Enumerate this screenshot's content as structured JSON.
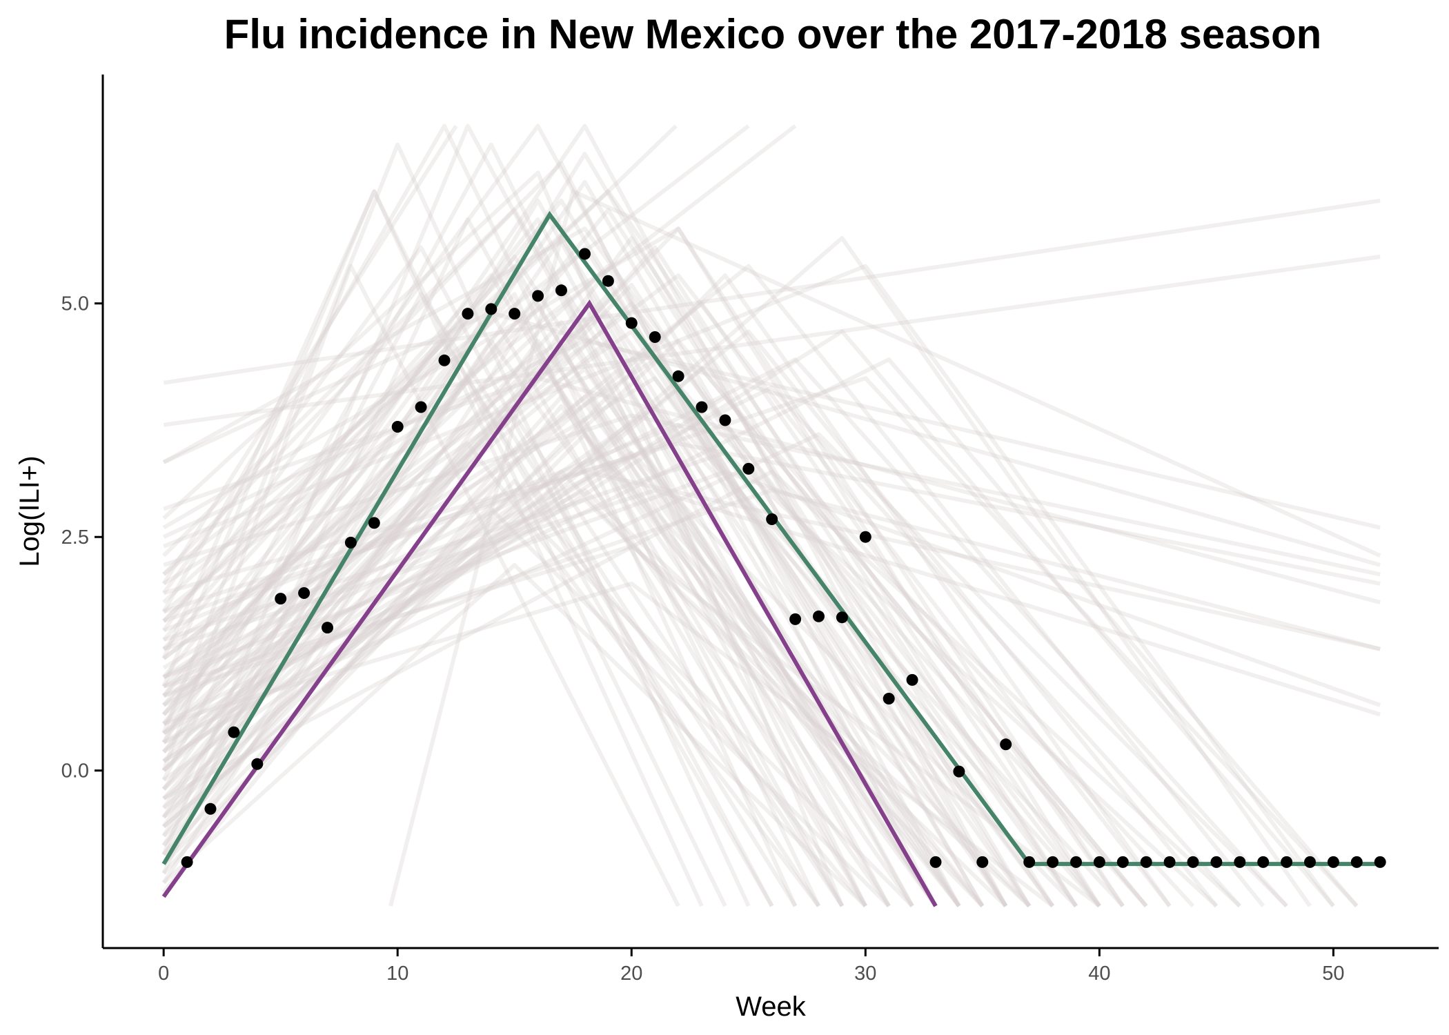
{
  "chart_data": {
    "type": "line",
    "title": "Flu incidence in New Mexico over the 2017-2018 season",
    "xlabel": "Week",
    "ylabel": "Log(ILI+)",
    "xlim": [
      -2.6,
      54.5
    ],
    "ylim": [
      -1.9,
      7.45
    ],
    "xticks": [
      0,
      10,
      20,
      30,
      40,
      50
    ],
    "xtick_labels": [
      "0",
      "10",
      "20",
      "30",
      "40",
      "50"
    ],
    "yticks": [
      0,
      2.5,
      5
    ],
    "ytick_labels": [
      "0.0",
      "2.5",
      "5.0"
    ],
    "grid": false,
    "colors": {
      "green_fit": "#458469",
      "purple_fit": "#84408A",
      "samples": "#D9D0D1",
      "points": "#000000"
    },
    "fit_lines": [
      {
        "x": [
          0,
          16.5,
          37,
          52
        ],
        "y": [
          -1.0,
          5.95,
          -1.0,
          -1.0
        ]
      },
      {
        "x": [
          0,
          18.2,
          33
        ],
        "y": [
          -1.35,
          5.0,
          -1.45
        ]
      }
    ],
    "sample_lines": [
      [
        [
          0,
          1.0
        ],
        [
          17,
          6.1
        ],
        [
          35,
          -1.45
        ]
      ],
      [
        [
          0,
          0.5
        ],
        [
          15,
          5.5
        ],
        [
          33,
          -1.45
        ]
      ],
      [
        [
          0,
          -0.2
        ],
        [
          18,
          6.3
        ],
        [
          36,
          -1.45
        ]
      ],
      [
        [
          0,
          0.8
        ],
        [
          16,
          5.9
        ],
        [
          32,
          -1.45
        ]
      ],
      [
        [
          0,
          0.2
        ],
        [
          19,
          6.0
        ],
        [
          38,
          -1.45
        ]
      ],
      [
        [
          0,
          1.4
        ],
        [
          14,
          5.3
        ],
        [
          30,
          -1.45
        ]
      ],
      [
        [
          0,
          -0.6
        ],
        [
          17,
          5.7
        ],
        [
          34,
          -1.45
        ]
      ],
      [
        [
          0,
          2.7
        ],
        [
          16,
          6.4
        ],
        [
          29,
          -1.45
        ]
      ],
      [
        [
          0,
          0.0
        ],
        [
          20,
          5.2
        ],
        [
          37,
          -1.45
        ]
      ],
      [
        [
          0,
          1.7
        ],
        [
          12,
          6.9
        ],
        [
          28,
          -1.45
        ]
      ],
      [
        [
          0,
          0.4
        ],
        [
          10,
          6.7
        ],
        [
          25,
          -1.45
        ]
      ],
      [
        [
          0,
          -0.9
        ],
        [
          13,
          6.9
        ],
        [
          31,
          -1.45
        ]
      ],
      [
        [
          0,
          0.3
        ],
        [
          18,
          6.9
        ],
        [
          36,
          -1.45
        ]
      ],
      [
        [
          0,
          1.2
        ],
        [
          9,
          6.2
        ],
        [
          24,
          -1.45
        ]
      ],
      [
        [
          0,
          0.7
        ],
        [
          15,
          5.1
        ],
        [
          27,
          -1.45
        ]
      ],
      [
        [
          0,
          -0.3
        ],
        [
          21,
          5.6
        ],
        [
          39,
          -1.45
        ]
      ],
      [
        [
          0,
          2.3
        ],
        [
          17,
          6.5
        ],
        [
          33,
          -1.45
        ]
      ],
      [
        [
          0,
          0.9
        ],
        [
          19,
          5.4
        ],
        [
          35,
          -1.45
        ]
      ],
      [
        [
          0,
          -1.2
        ],
        [
          16,
          5.0
        ],
        [
          30,
          -1.45
        ]
      ],
      [
        [
          0,
          0.1
        ],
        [
          22,
          5.8
        ],
        [
          40,
          -1.45
        ]
      ],
      [
        [
          0,
          1.9
        ],
        [
          11,
          5.6
        ],
        [
          26,
          -1.45
        ]
      ],
      [
        [
          0,
          -0.4
        ],
        [
          14,
          4.6
        ],
        [
          31,
          -1.45
        ]
      ],
      [
        [
          0,
          0.6
        ],
        [
          18,
          4.3
        ],
        [
          34,
          -1.45
        ]
      ],
      [
        [
          0,
          1.3
        ],
        [
          20,
          4.7
        ],
        [
          36,
          -1.45
        ]
      ],
      [
        [
          0,
          -0.8
        ],
        [
          17,
          4.0
        ],
        [
          32,
          -1.45
        ]
      ],
      [
        [
          0,
          0.0
        ],
        [
          15,
          3.8
        ],
        [
          29,
          -1.45
        ]
      ],
      [
        [
          0,
          2.0
        ],
        [
          19,
          4.9
        ],
        [
          37,
          -1.45
        ]
      ],
      [
        [
          0,
          -1.0
        ],
        [
          18,
          3.6
        ],
        [
          35,
          -1.45
        ]
      ],
      [
        [
          0,
          0.5
        ],
        [
          16,
          4.4
        ],
        [
          33,
          -1.45
        ]
      ],
      [
        [
          0,
          1.1
        ],
        [
          21,
          4.2
        ],
        [
          38,
          -1.45
        ]
      ],
      [
        [
          0,
          -0.5
        ],
        [
          13,
          3.5
        ],
        [
          28,
          -1.45
        ]
      ],
      [
        [
          0,
          0.3
        ],
        [
          20,
          3.4
        ],
        [
          39,
          -1.45
        ]
      ],
      [
        [
          0,
          -1.3
        ],
        [
          17,
          3.9
        ],
        [
          34,
          -1.45
        ]
      ],
      [
        [
          0,
          0.8
        ],
        [
          18,
          2.9
        ],
        [
          36,
          -1.45
        ]
      ],
      [
        [
          0,
          -0.7
        ],
        [
          15,
          3.1
        ],
        [
          30,
          -1.45
        ]
      ],
      [
        [
          0,
          1.5
        ],
        [
          22,
          3.7
        ],
        [
          41,
          -1.45
        ]
      ],
      [
        [
          0,
          -0.1
        ],
        [
          19,
          3.3
        ],
        [
          37,
          -1.45
        ]
      ],
      [
        [
          0,
          0.4
        ],
        [
          16,
          2.6
        ],
        [
          32,
          -1.45
        ]
      ],
      [
        [
          0,
          -1.1
        ],
        [
          14,
          2.8
        ],
        [
          31,
          -1.45
        ]
      ],
      [
        [
          0,
          0.9
        ],
        [
          20,
          2.4
        ],
        [
          40,
          -1.45
        ]
      ],
      [
        [
          0,
          -0.6
        ],
        [
          23,
          4.3
        ],
        [
          42,
          -1.45
        ]
      ],
      [
        [
          0,
          0.2
        ],
        [
          17,
          4.8
        ],
        [
          33,
          -1.45
        ]
      ],
      [
        [
          0,
          1.6
        ],
        [
          15,
          5.4
        ],
        [
          31,
          -1.45
        ]
      ],
      [
        [
          0,
          -0.2
        ],
        [
          19,
          5.1
        ],
        [
          38,
          -1.45
        ]
      ],
      [
        [
          0,
          0.6
        ],
        [
          18,
          5.6
        ],
        [
          36,
          -1.45
        ]
      ],
      [
        [
          0,
          -0.9
        ],
        [
          16,
          4.6
        ],
        [
          34,
          -1.45
        ]
      ],
      [
        [
          0,
          1.0
        ],
        [
          21,
          4.4
        ],
        [
          42,
          -1.45
        ]
      ],
      [
        [
          0,
          -0.4
        ],
        [
          17,
          3.2
        ],
        [
          35,
          -1.45
        ]
      ],
      [
        [
          0,
          0.1
        ],
        [
          24,
          4.0
        ],
        [
          44,
          -1.45
        ]
      ],
      [
        [
          0,
          0.7
        ],
        [
          18,
          3.0
        ],
        [
          37,
          -1.45
        ]
      ],
      [
        [
          0,
          -1.2
        ],
        [
          15,
          2.2
        ],
        [
          30,
          -1.45
        ]
      ],
      [
        [
          0,
          0.5
        ],
        [
          20,
          2.0
        ],
        [
          38,
          -1.45
        ]
      ],
      [
        [
          0,
          3.3
        ],
        [
          18,
          5.8
        ],
        [
          39,
          -1.45
        ]
      ],
      [
        [
          0,
          1.2
        ],
        [
          22,
          5.3
        ],
        [
          43,
          -1.45
        ]
      ],
      [
        [
          0,
          -0.3
        ],
        [
          25,
          4.7
        ],
        [
          45,
          -1.45
        ]
      ],
      [
        [
          0,
          0.9
        ],
        [
          26,
          4.1
        ],
        [
          46,
          -1.45
        ]
      ],
      [
        [
          0,
          0.3
        ],
        [
          28,
          3.6
        ],
        [
          48,
          -1.45
        ]
      ],
      [
        [
          0,
          -0.7
        ],
        [
          18,
          6.6
        ],
        [
          37,
          -1.45
        ]
      ],
      [
        [
          0,
          2.1
        ],
        [
          15,
          6.0
        ],
        [
          32,
          -1.45
        ]
      ],
      [
        [
          0,
          0.0
        ],
        [
          23,
          5.0
        ],
        [
          41,
          -1.45
        ]
      ],
      [
        [
          0,
          1.4
        ],
        [
          24,
          3.4
        ],
        [
          45,
          -1.45
        ]
      ],
      [
        [
          0,
          -1.0
        ],
        [
          20,
          5.7
        ],
        [
          39,
          -1.45
        ]
      ],
      [
        [
          0,
          0.8
        ],
        [
          17,
          5.2
        ],
        [
          34,
          -1.45
        ]
      ],
      [
        [
          0,
          -0.5
        ],
        [
          16,
          6.1
        ],
        [
          33,
          -1.45
        ]
      ],
      [
        [
          0,
          1.8
        ],
        [
          19,
          6.2
        ],
        [
          40,
          -1.45
        ]
      ],
      [
        [
          0,
          0.2
        ],
        [
          21,
          3.9
        ],
        [
          40,
          -1.45
        ]
      ],
      [
        [
          0,
          -0.8
        ],
        [
          13,
          4.2
        ],
        [
          26,
          -1.45
        ]
      ],
      [
        [
          0,
          0.6
        ],
        [
          14,
          4.9
        ],
        [
          29,
          -1.45
        ]
      ],
      [
        [
          0,
          1.3
        ],
        [
          12,
          4.6
        ],
        [
          27,
          -1.45
        ]
      ],
      [
        [
          0,
          -0.1
        ],
        [
          11,
          5.1
        ],
        [
          28,
          -1.45
        ]
      ],
      [
        [
          0,
          2.6
        ],
        [
          22,
          5.8
        ],
        [
          41,
          -1.45
        ]
      ],
      [
        [
          0,
          0.4
        ],
        [
          25,
          5.4
        ],
        [
          47,
          -1.45
        ]
      ],
      [
        [
          0,
          -0.6
        ],
        [
          29,
          5.7
        ],
        [
          49,
          -1.45
        ]
      ],
      [
        [
          0,
          1.0
        ],
        [
          27,
          4.4
        ],
        [
          48,
          -1.45
        ]
      ],
      [
        [
          0,
          0.1
        ],
        [
          29,
          4.7
        ],
        [
          50,
          -1.45
        ]
      ],
      [
        [
          0,
          2.4
        ],
        [
          30,
          5.4
        ],
        [
          50,
          -1.45
        ]
      ],
      [
        [
          0,
          0.5
        ],
        [
          31,
          4.4
        ],
        [
          51,
          -1.45
        ]
      ],
      [
        [
          0,
          -0.3
        ],
        [
          26,
          3.2
        ],
        [
          46,
          -1.45
        ]
      ],
      [
        [
          0,
          1.7
        ],
        [
          30,
          4.2
        ],
        [
          51,
          -1.45
        ]
      ],
      [
        [
          0,
          0.0
        ],
        [
          8,
          5.4
        ],
        [
          22,
          -1.45
        ]
      ],
      [
        [
          0,
          0.9
        ],
        [
          9,
          6.2
        ],
        [
          23,
          -1.45
        ]
      ],
      [
        [
          0,
          -1.1
        ],
        [
          13,
          5.9
        ],
        [
          29,
          -1.45
        ]
      ],
      [
        [
          0,
          0.3
        ],
        [
          14,
          6.7
        ],
        [
          30,
          -1.45
        ]
      ],
      [
        [
          0,
          1.5
        ],
        [
          16,
          6.9
        ],
        [
          34,
          -1.45
        ]
      ],
      [
        [
          0,
          -0.9
        ],
        [
          24,
          5.3
        ],
        [
          43,
          -1.45
        ]
      ],
      [
        [
          0,
          0.7
        ],
        [
          19,
          4.6
        ],
        [
          36,
          -1.45
        ]
      ],
      [
        [
          0,
          -0.2
        ],
        [
          18,
          4.0
        ],
        [
          35,
          -1.45
        ]
      ],
      [
        [
          0,
          1.2
        ],
        [
          17,
          4.5
        ],
        [
          33,
          -1.45
        ]
      ],
      [
        [
          0,
          0.4
        ],
        [
          20,
          5.0
        ],
        [
          40,
          -1.45
        ]
      ],
      [
        [
          0,
          -0.5
        ],
        [
          22,
          4.6
        ],
        [
          42,
          -1.45
        ]
      ],
      [
        [
          0,
          4.15
        ],
        [
          52,
          6.1
        ]
      ],
      [
        [
          0,
          3.7
        ],
        [
          52,
          5.5
        ]
      ],
      [
        [
          0,
          3.3
        ],
        [
          14,
          4.9
        ],
        [
          52,
          2.2
        ]
      ],
      [
        [
          0,
          2.8
        ],
        [
          16,
          4.2
        ],
        [
          52,
          1.8
        ]
      ],
      [
        [
          0,
          2.5
        ],
        [
          18,
          4.6
        ],
        [
          52,
          2.6
        ]
      ],
      [
        [
          0,
          2.2
        ],
        [
          20,
          3.8
        ],
        [
          52,
          2.1
        ]
      ],
      [
        [
          0,
          1.9
        ],
        [
          22,
          3.5
        ],
        [
          52,
          2.0
        ]
      ],
      [
        [
          0,
          1.6
        ],
        [
          18,
          3.2
        ],
        [
          52,
          1.3
        ]
      ],
      [
        [
          0,
          1.3
        ],
        [
          21,
          3.0
        ],
        [
          52,
          0.6
        ]
      ],
      [
        [
          0,
          1.0
        ],
        [
          24,
          3.2
        ],
        [
          52,
          0.7
        ]
      ],
      [
        [
          9.7,
          -1.45
        ],
        [
          17.5,
          6.2
        ],
        [
          52,
          2.3
        ]
      ],
      [
        [
          0,
          0.8
        ],
        [
          26,
          3.0
        ],
        [
          52,
          1.3
        ]
      ],
      [
        [
          0,
          2.0
        ],
        [
          12.5,
          6.9
        ]
      ],
      [
        [
          0,
          1.6
        ],
        [
          21.9,
          6.9
        ]
      ],
      [
        [
          0,
          2.1
        ],
        [
          25,
          6.9
        ]
      ],
      [
        [
          0,
          1.7
        ],
        [
          27,
          6.9
        ]
      ]
    ],
    "points": {
      "x": [
        1,
        2,
        3,
        4,
        5,
        6,
        7,
        8,
        9,
        10,
        11,
        12,
        13,
        14,
        15,
        16,
        17,
        18,
        19,
        20,
        21,
        22,
        23,
        24,
        25,
        26,
        27,
        28,
        29,
        30,
        31,
        32,
        33,
        34,
        35,
        36,
        37,
        38,
        39,
        40,
        41,
        42,
        43,
        44,
        45,
        46,
        47,
        48,
        49,
        50,
        51,
        52
      ],
      "y": [
        -0.98,
        -0.41,
        0.41,
        0.07,
        1.84,
        1.9,
        1.53,
        2.44,
        2.65,
        3.68,
        3.89,
        4.39,
        4.89,
        4.94,
        4.89,
        5.08,
        5.14,
        5.53,
        5.24,
        4.79,
        4.64,
        4.22,
        3.89,
        3.75,
        3.23,
        2.69,
        1.62,
        1.65,
        1.64,
        2.5,
        0.77,
        0.97,
        -0.98,
        -0.01,
        -0.98,
        0.28,
        -0.98,
        -0.98,
        -0.98,
        -0.98,
        -0.98,
        -0.98,
        -0.98,
        -0.98,
        -0.98,
        -0.98,
        -0.98,
        -0.98,
        -0.98,
        -0.98,
        -0.98,
        -0.98
      ]
    }
  }
}
